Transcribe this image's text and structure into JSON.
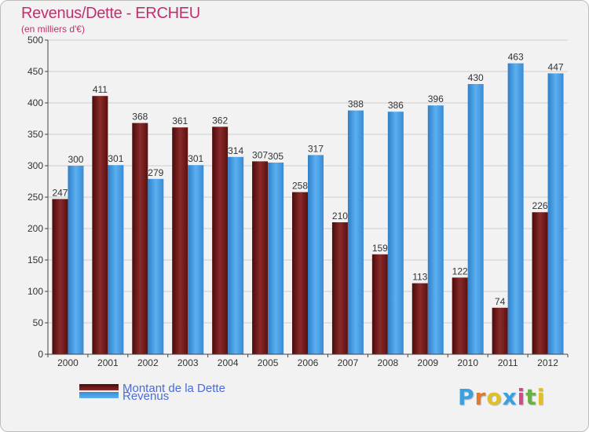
{
  "header": {
    "title": "Revenus/Dette - ERCHEU",
    "subtitle": "(en milliers d'€)"
  },
  "colors": {
    "title": "#c0306e",
    "dette": "#7a1b1b",
    "revenus": "#4aa1e6",
    "grid": "#cfcfcf",
    "legend_text": "#4a6bd6"
  },
  "chart_data": {
    "type": "bar",
    "title": "Revenus/Dette - ERCHEU",
    "subtitle": "(en milliers d'€)",
    "categories": [
      "2000",
      "2001",
      "2002",
      "2003",
      "2004",
      "2005",
      "2006",
      "2007",
      "2008",
      "2009",
      "2010",
      "2011",
      "2012"
    ],
    "series": [
      {
        "name": "Montant de la Dette",
        "values": [
          247,
          411,
          368,
          361,
          362,
          307,
          258,
          210,
          159,
          113,
          122,
          74,
          226
        ]
      },
      {
        "name": "Revenus",
        "values": [
          300,
          301,
          279,
          301,
          314,
          305,
          317,
          388,
          386,
          396,
          430,
          463,
          447
        ]
      }
    ],
    "ylim": [
      0,
      500
    ],
    "yticks": [
      0,
      50,
      100,
      150,
      200,
      250,
      300,
      350,
      400,
      450,
      500
    ],
    "grid": true,
    "legend_position": "bottom-left"
  },
  "legend": {
    "items": [
      {
        "label": "Montant de la Dette"
      },
      {
        "label": "Revenus"
      }
    ]
  },
  "logo": {
    "text": "Proxiti",
    "letters": [
      "P",
      "r",
      "o",
      "x",
      "i",
      "t",
      "i"
    ],
    "letter_colors": [
      "#3aa0e0",
      "#e07a2a",
      "#e0c02a",
      "#3aa0e0",
      "#d04a8a",
      "#6ab04a",
      "#e0c02a"
    ]
  }
}
